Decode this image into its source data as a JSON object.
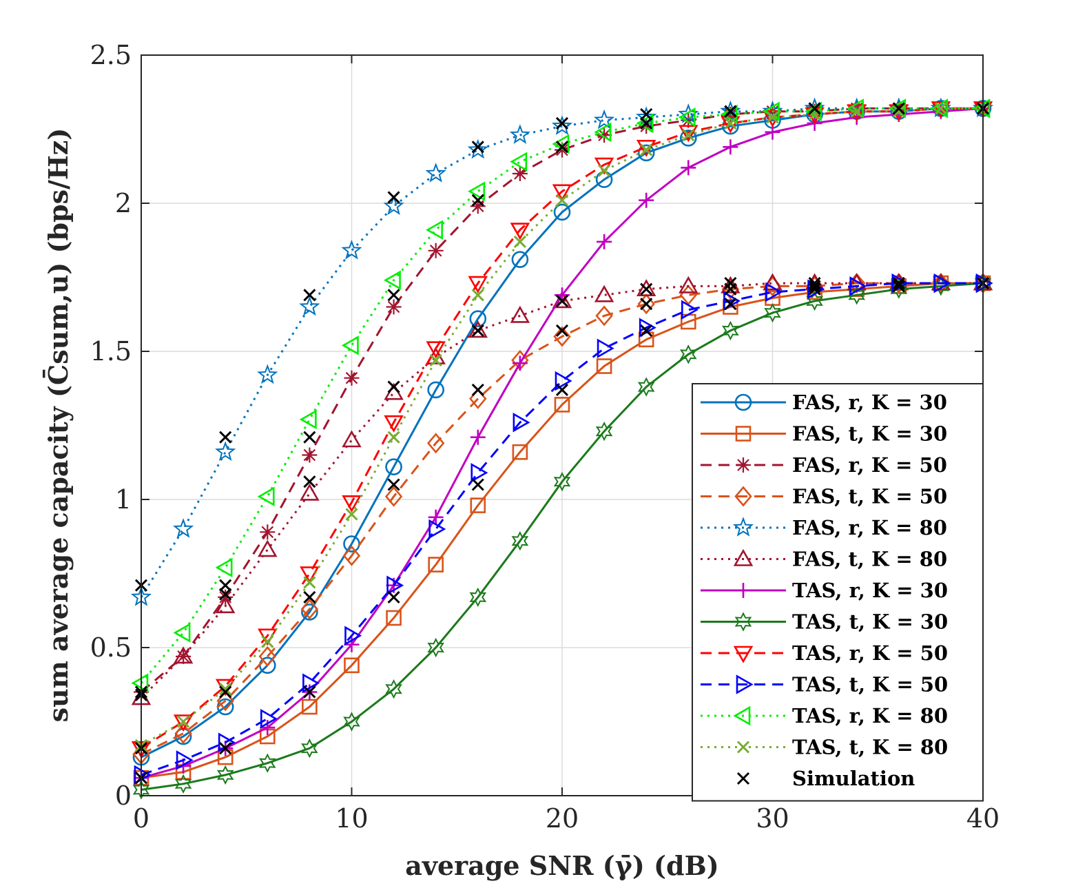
{
  "chart_data": {
    "type": "line",
    "title": "",
    "xlabel": "average SNR (γ̄) (dB)",
    "ylabel": "sum average capacity (C̄sum,u) (bps/Hz)",
    "xlim": [
      0,
      40
    ],
    "ylim": [
      0,
      2.5
    ],
    "xticks": [
      0,
      10,
      20,
      30,
      40
    ],
    "yticks": [
      0,
      0.5,
      1,
      1.5,
      2,
      2.5
    ],
    "xtick_labels": [
      "0",
      "10",
      "20",
      "30",
      "40"
    ],
    "ytick_labels": [
      "0",
      "0.5",
      "1",
      "1.5",
      "2",
      "2.5"
    ],
    "grid": true,
    "legend_position": "bottom-right",
    "x": [
      0,
      2,
      4,
      6,
      8,
      10,
      12,
      14,
      16,
      18,
      20,
      22,
      24,
      26,
      28,
      30,
      32,
      34,
      36,
      38,
      40
    ],
    "series": [
      {
        "name": "FAS, r, K = 30",
        "color": "#0072bd",
        "dash": "solid",
        "marker": "circle",
        "values": [
          0.13,
          0.2,
          0.3,
          0.44,
          0.62,
          0.85,
          1.11,
          1.37,
          1.61,
          1.81,
          1.97,
          2.08,
          2.17,
          2.22,
          2.26,
          2.28,
          2.3,
          2.31,
          2.31,
          2.32,
          2.32
        ]
      },
      {
        "name": "FAS, t, K = 30",
        "color": "#d95319",
        "dash": "solid",
        "marker": "square",
        "values": [
          0.06,
          0.08,
          0.13,
          0.2,
          0.3,
          0.44,
          0.6,
          0.78,
          0.98,
          1.16,
          1.32,
          1.45,
          1.54,
          1.6,
          1.65,
          1.68,
          1.7,
          1.71,
          1.72,
          1.73,
          1.73
        ]
      },
      {
        "name": "FAS, r, K = 50",
        "color": "#a2142f",
        "dash": "dashed",
        "marker": "asterisk",
        "values": [
          0.35,
          0.47,
          0.67,
          0.89,
          1.15,
          1.41,
          1.65,
          1.84,
          1.99,
          2.1,
          2.18,
          2.23,
          2.26,
          2.28,
          2.3,
          2.31,
          2.31,
          2.32,
          2.32,
          2.32,
          2.32
        ]
      },
      {
        "name": "FAS, t, K = 50",
        "color": "#d95319",
        "dash": "dashed",
        "marker": "diamond",
        "values": [
          0.14,
          0.21,
          0.32,
          0.47,
          0.63,
          0.81,
          1.01,
          1.19,
          1.34,
          1.47,
          1.55,
          1.62,
          1.66,
          1.69,
          1.71,
          1.72,
          1.72,
          1.73,
          1.73,
          1.73,
          1.73
        ]
      },
      {
        "name": "FAS, r, K = 80",
        "color": "#0072bd",
        "dash": "dotted",
        "marker": "pentagram",
        "values": [
          0.67,
          0.9,
          1.16,
          1.42,
          1.65,
          1.84,
          1.99,
          2.1,
          2.18,
          2.23,
          2.26,
          2.28,
          2.29,
          2.3,
          2.31,
          2.31,
          2.32,
          2.32,
          2.32,
          2.32,
          2.32
        ]
      },
      {
        "name": "FAS, t, K = 80",
        "color": "#a2142f",
        "dash": "dotted",
        "marker": "triangle-up",
        "values": [
          0.33,
          0.47,
          0.64,
          0.83,
          1.02,
          1.2,
          1.36,
          1.48,
          1.57,
          1.62,
          1.67,
          1.69,
          1.71,
          1.72,
          1.72,
          1.73,
          1.73,
          1.73,
          1.73,
          1.73,
          1.73
        ]
      },
      {
        "name": "TAS, r, K = 30",
        "color": "#c000c0",
        "dash": "solid",
        "marker": "plus",
        "values": [
          0.06,
          0.1,
          0.16,
          0.23,
          0.35,
          0.51,
          0.71,
          0.94,
          1.21,
          1.46,
          1.69,
          1.87,
          2.01,
          2.12,
          2.19,
          2.24,
          2.27,
          2.29,
          2.3,
          2.31,
          2.32
        ]
      },
      {
        "name": "TAS, t, K = 30",
        "color": "#1a7a1a",
        "dash": "solid",
        "marker": "hexagram",
        "values": [
          0.02,
          0.04,
          0.07,
          0.11,
          0.16,
          0.25,
          0.36,
          0.5,
          0.67,
          0.86,
          1.06,
          1.23,
          1.38,
          1.49,
          1.57,
          1.63,
          1.67,
          1.69,
          1.71,
          1.72,
          1.73
        ]
      },
      {
        "name": "TAS, r, K = 50",
        "color": "#ff0000",
        "dash": "dashed",
        "marker": "triangle-down",
        "values": [
          0.16,
          0.25,
          0.37,
          0.54,
          0.75,
          0.99,
          1.26,
          1.51,
          1.73,
          1.91,
          2.04,
          2.13,
          2.19,
          2.24,
          2.27,
          2.29,
          2.3,
          2.31,
          2.31,
          2.32,
          2.32
        ]
      },
      {
        "name": "TAS, t, K = 50",
        "color": "#0000ff",
        "dash": "dashed",
        "marker": "triangle-right",
        "values": [
          0.07,
          0.12,
          0.18,
          0.26,
          0.38,
          0.54,
          0.71,
          0.9,
          1.09,
          1.26,
          1.4,
          1.51,
          1.58,
          1.64,
          1.67,
          1.7,
          1.71,
          1.72,
          1.73,
          1.73,
          1.73
        ]
      },
      {
        "name": "TAS, r, K = 80",
        "color": "#00ee00",
        "dash": "dotted",
        "marker": "triangle-left",
        "values": [
          0.38,
          0.55,
          0.77,
          1.01,
          1.27,
          1.52,
          1.74,
          1.91,
          2.04,
          2.14,
          2.2,
          2.24,
          2.27,
          2.29,
          2.3,
          2.31,
          2.31,
          2.32,
          2.32,
          2.32,
          2.32
        ]
      },
      {
        "name": "TAS, t, K = 80",
        "color": "#77ac30",
        "dash": "dotted",
        "marker": "cross",
        "values": [
          0.17,
          0.25,
          0.36,
          0.52,
          0.72,
          0.95,
          1.21,
          1.47,
          1.69,
          1.87,
          2.01,
          2.11,
          2.18,
          2.23,
          2.27,
          2.29,
          2.3,
          2.31,
          2.31,
          2.32,
          2.32
        ]
      }
    ],
    "simulation": {
      "name": "Simulation",
      "color": "#000000",
      "marker": "cross",
      "x": [
        0,
        4,
        8,
        12,
        16,
        20,
        24,
        28,
        32,
        36,
        40
      ],
      "series_values": [
        [
          0.16,
          0.35,
          0.67,
          1.05,
          1.37,
          1.57,
          1.66,
          1.71,
          1.72,
          1.73,
          1.73
        ],
        [
          0.34,
          0.71,
          1.21,
          1.69,
          2.01,
          2.19,
          2.27,
          2.31,
          2.32,
          2.32,
          2.32
        ],
        [
          0.71,
          1.21,
          1.69,
          2.02,
          2.19,
          2.27,
          2.3,
          2.31,
          2.32,
          2.32,
          2.32
        ],
        [
          0.06,
          0.16,
          0.35,
          0.67,
          1.05,
          1.37,
          1.57,
          1.66,
          1.71,
          1.72,
          1.73
        ],
        [
          0.35,
          0.68,
          1.06,
          1.38,
          1.57,
          1.67,
          1.71,
          1.73,
          1.73,
          1.73,
          1.73
        ]
      ]
    }
  }
}
